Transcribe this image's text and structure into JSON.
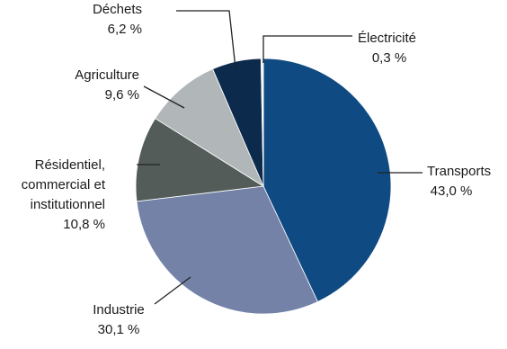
{
  "chart_data": {
    "type": "pie",
    "categories": [
      "Transports",
      "Industrie",
      "Résidentiel, commercial et institutionnel",
      "Agriculture",
      "Déchets",
      "Électricité"
    ],
    "values": [
      43.0,
      30.1,
      10.8,
      9.6,
      6.2,
      0.3
    ],
    "value_labels": [
      "43,0 %",
      "30,1 %",
      "10,8 %",
      "9,6 %",
      "6,2 %",
      "0,3 %"
    ],
    "colors": [
      "#0f4b82",
      "#7482a8",
      "#535c59",
      "#b1b7b9",
      "#0c2a4c",
      "#eef1f3"
    ]
  }
}
